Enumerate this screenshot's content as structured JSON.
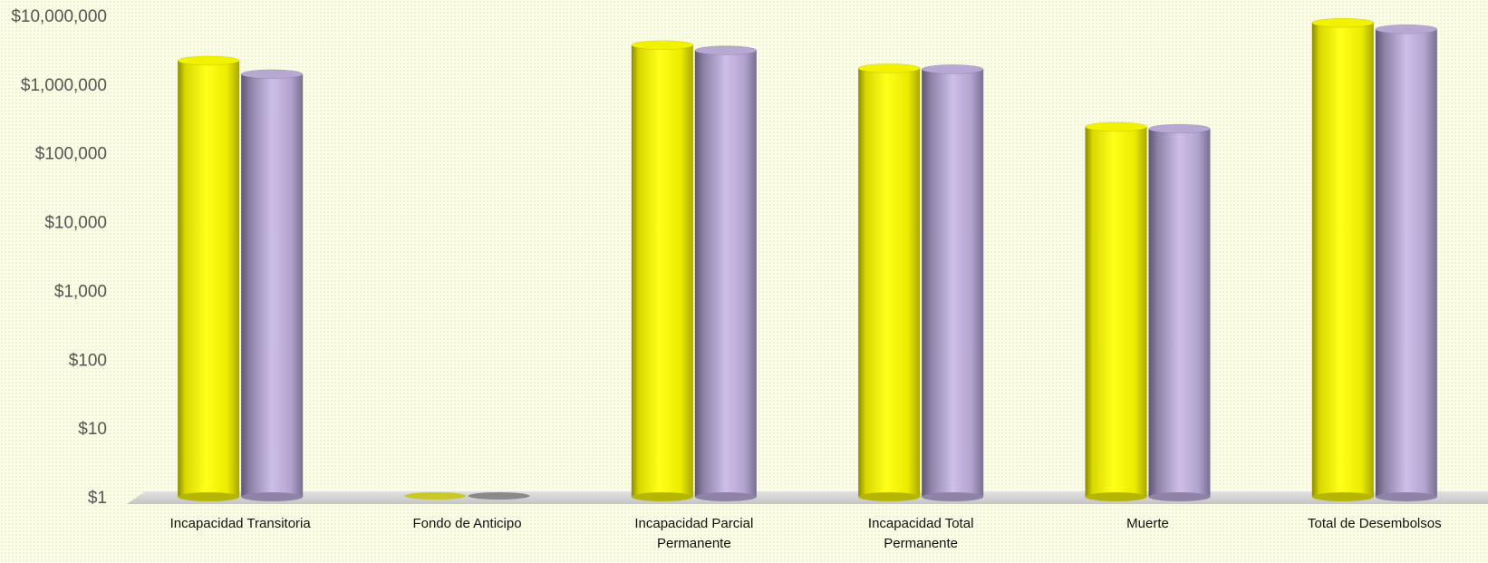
{
  "chart_data": {
    "type": "bar",
    "title": "",
    "xlabel": "",
    "ylabel": "",
    "yscale": "log",
    "ylim": [
      1,
      10000000
    ],
    "yticks": [
      "$1",
      "$10",
      "$100",
      "$1,000",
      "$10,000",
      "$100,000",
      "$1,000,000",
      "$10,000,000"
    ],
    "categories": [
      [
        "Incapacidad Transitoria"
      ],
      [
        "Fondo de Anticipo"
      ],
      [
        "Incapacidad Parcial",
        "Permanente"
      ],
      [
        "Incapacidad Total",
        "Permanente"
      ],
      [
        "Muerte"
      ],
      [
        "Total de Desembolsos"
      ]
    ],
    "series": [
      {
        "values": [
          2200000,
          1,
          3700000,
          1700000,
          240000,
          7800000
        ]
      },
      {
        "values": [
          1400000,
          1,
          3100000,
          1650000,
          225000,
          6300000
        ]
      }
    ],
    "colors": {
      "series1": "#ffff00",
      "series2": "#b9a9d6",
      "floor": "#d3d3d3"
    },
    "legend": "none",
    "grid": false
  }
}
